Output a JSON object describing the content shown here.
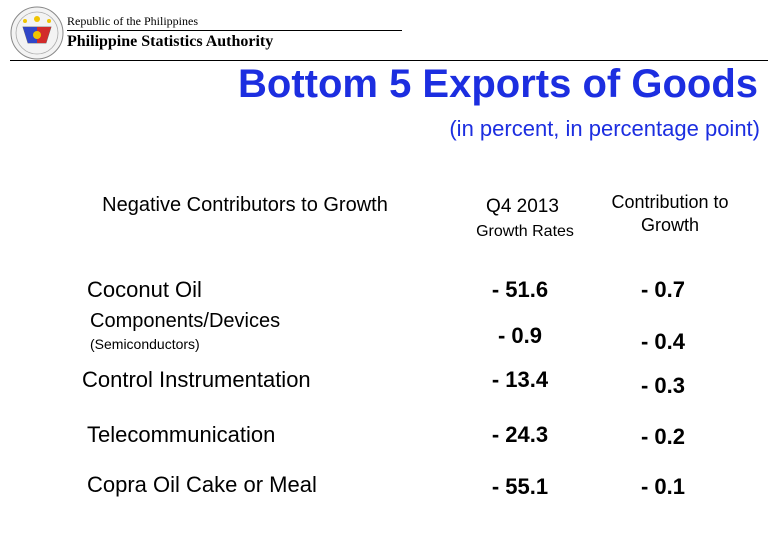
{
  "header": {
    "republic": "Republic of the Philippines",
    "agency": "Philippine Statistics Authority"
  },
  "title": "Bottom 5 Exports of Goods",
  "subtitle": "(in percent, in percentage point)",
  "columns": {
    "label_header": "Negative Contributors to Growth",
    "period": "Q4 2013",
    "growth_header": "Growth Rates",
    "contribution_header": "Contribution to Growth"
  },
  "rows": [
    {
      "label": "Coconut Oil",
      "growth": "- 51.6",
      "contribution": "- 0.7"
    },
    {
      "label": "Components/Devices",
      "sublabel": "(Semiconductors)",
      "growth": "- 0.9",
      "contribution": "- 0.4"
    },
    {
      "label": "Control Instrumentation",
      "growth": "- 13.4",
      "contribution": "- 0.3"
    },
    {
      "label": "Telecommunication",
      "growth": "- 24.3",
      "contribution": "- 0.2"
    },
    {
      "label": "Copra Oil Cake or Meal",
      "growth": "- 55.1",
      "contribution": "- 0.1"
    }
  ],
  "colors": {
    "accent": "#1c2ee0",
    "text": "#000000"
  },
  "icons": {
    "logo": "psa-seal-icon"
  }
}
